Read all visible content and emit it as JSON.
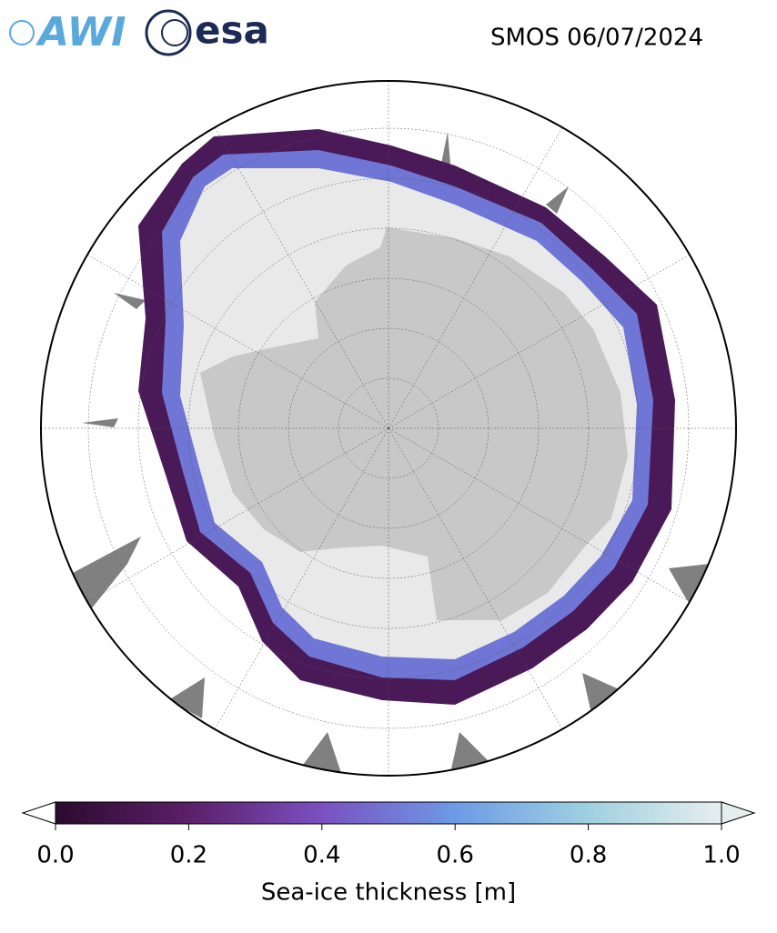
{
  "header": {
    "title": "SMOS 06/07/2024",
    "logos": [
      "AWI",
      "esa"
    ]
  },
  "colorbar": {
    "label": "Sea-ice thickness [m]",
    "lim": [
      0,
      1
    ],
    "ticks": [
      {
        "value": 0,
        "label": "0.0"
      },
      0.2,
      0.4,
      0.6,
      0.8,
      {
        "value": 1,
        "label": "1.0"
      }
    ],
    "colors": [
      "#2b0b2e",
      "#5c1f69",
      "#7a50c0",
      "#6d9ae6",
      "#9fd0e0",
      "#e6eeee"
    ]
  }
}
